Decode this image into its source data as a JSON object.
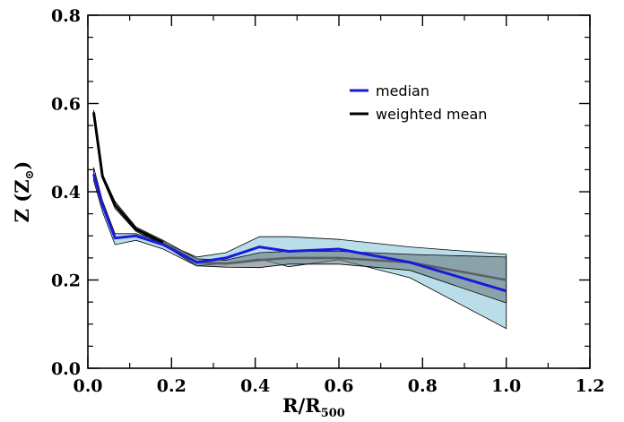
{
  "chart_data": {
    "type": "line",
    "xlabel": "R/R",
    "xlabel_sub": "500",
    "ylabel_main": "Z (Z",
    "ylabel_sun": "⊙",
    "ylabel_close": ")",
    "xlim": [
      0.0,
      1.2
    ],
    "ylim": [
      0.0,
      0.8
    ],
    "x_ticks": [
      0.0,
      0.2,
      0.4,
      0.6,
      0.8,
      1.0,
      1.2
    ],
    "x_tick_labels": [
      "0.0",
      "0.2",
      "0.4",
      "0.6",
      "0.8",
      "1.0",
      "1.2"
    ],
    "y_ticks": [
      0.0,
      0.2,
      0.4,
      0.6,
      0.8
    ],
    "y_tick_labels": [
      "0.0",
      "0.2",
      "0.4",
      "0.6",
      "0.8"
    ],
    "legend_position": "top-right",
    "series": [
      {
        "name": "median",
        "color": "#1a1adb",
        "x": [
          0.014,
          0.035,
          0.065,
          0.115,
          0.18,
          0.26,
          0.33,
          0.41,
          0.48,
          0.6,
          0.77,
          1.0
        ],
        "y": [
          0.44,
          0.37,
          0.295,
          0.3,
          0.28,
          0.24,
          0.25,
          0.275,
          0.265,
          0.27,
          0.24,
          0.175
        ],
        "band_upper": [
          0.455,
          0.38,
          0.305,
          0.305,
          0.285,
          0.252,
          0.262,
          0.298,
          0.298,
          0.292,
          0.275,
          0.258
        ],
        "band_lower": [
          0.425,
          0.355,
          0.28,
          0.29,
          0.27,
          0.232,
          0.238,
          0.248,
          0.23,
          0.246,
          0.205,
          0.09
        ],
        "band_color": "#add8e6"
      },
      {
        "name": "weighted mean",
        "color": "#000000",
        "x": [
          0.014,
          0.035,
          0.065,
          0.115,
          0.18,
          0.26,
          0.33,
          0.41,
          0.48,
          0.6,
          0.77,
          1.0
        ],
        "y": [
          0.58,
          0.435,
          0.37,
          0.315,
          0.285,
          0.24,
          0.237,
          0.245,
          0.25,
          0.25,
          0.24,
          0.2
        ],
        "band_upper": [
          0.585,
          0.44,
          0.378,
          0.32,
          0.29,
          0.248,
          0.245,
          0.262,
          0.265,
          0.265,
          0.258,
          0.252
        ],
        "band_lower": [
          0.575,
          0.43,
          0.362,
          0.31,
          0.28,
          0.232,
          0.229,
          0.228,
          0.236,
          0.236,
          0.222,
          0.148
        ],
        "band_color": "#6b7b80",
        "line_color_outer": "#5c6064"
      }
    ]
  }
}
